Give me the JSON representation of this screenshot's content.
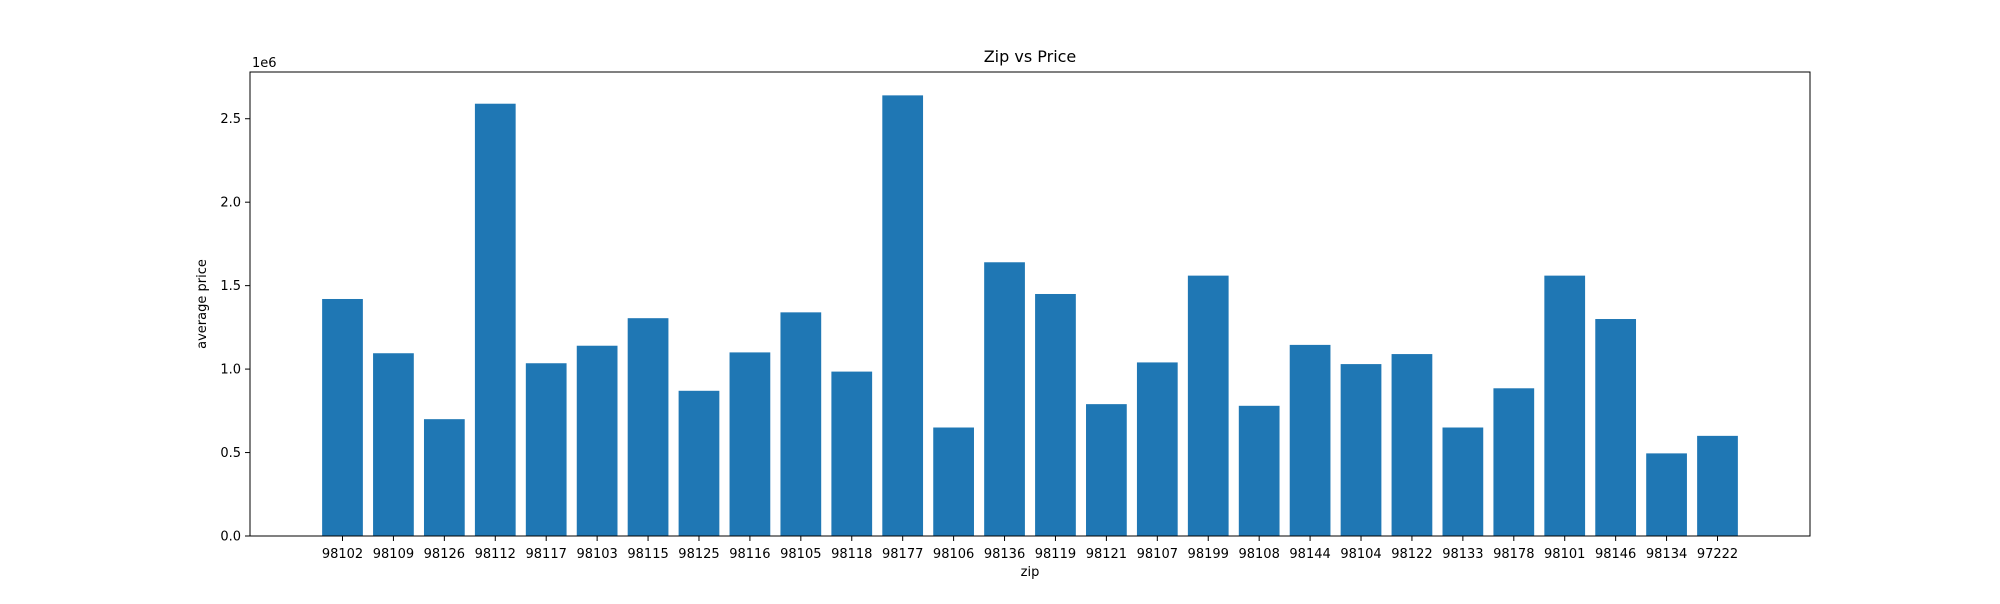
{
  "chart_data": {
    "type": "bar",
    "title": "Zip vs Price",
    "xlabel": "zip",
    "ylabel": "average price",
    "y_offset_label": "1e6",
    "y_scale_factor": 1000000,
    "ylim": [
      0,
      2.78
    ],
    "yticks": [
      "0.0",
      "0.5",
      "1.0",
      "1.5",
      "2.0",
      "2.5"
    ],
    "grid": false,
    "bar_color": "#1f77b4",
    "categories": [
      "98102",
      "98109",
      "98126",
      "98112",
      "98117",
      "98103",
      "98115",
      "98125",
      "98116",
      "98105",
      "98118",
      "98177",
      "98106",
      "98136",
      "98119",
      "98121",
      "98107",
      "98199",
      "98108",
      "98144",
      "98104",
      "98122",
      "98133",
      "98178",
      "98101",
      "98146",
      "98134",
      "97222"
    ],
    "values": [
      1420000,
      1095000,
      700000,
      2590000,
      1035000,
      1140000,
      1305000,
      870000,
      1100000,
      1340000,
      985000,
      2640000,
      650000,
      1640000,
      1450000,
      790000,
      1040000,
      1560000,
      780000,
      1145000,
      1030000,
      1090000,
      650000,
      885000,
      1560000,
      1300000,
      495000,
      600000
    ]
  }
}
